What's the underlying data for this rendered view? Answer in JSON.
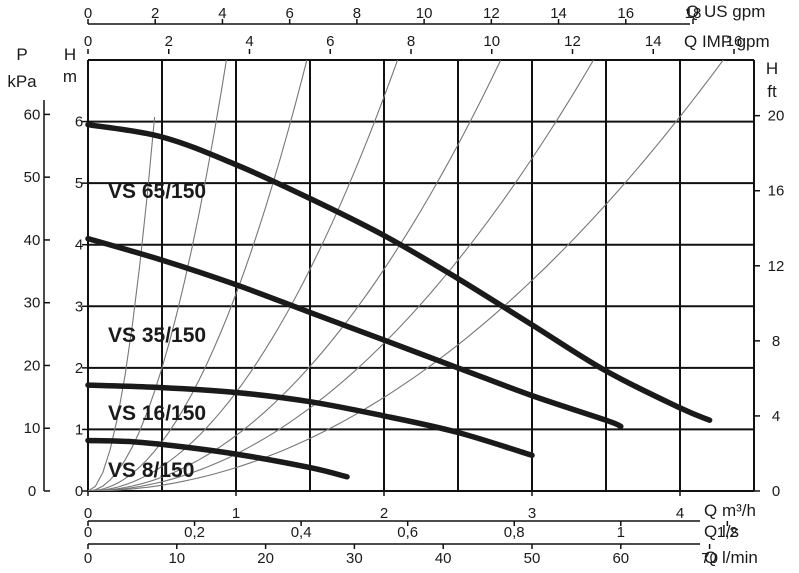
{
  "chart_data": {
    "type": "line",
    "curves": [
      {
        "name": "VS 65/150",
        "x": [
          0,
          0.5,
          1,
          1.5,
          2,
          2.5,
          3,
          3.5,
          4,
          4.2
        ],
        "y": [
          5.95,
          5.75,
          5.3,
          4.75,
          4.15,
          3.45,
          2.7,
          1.95,
          1.35,
          1.15
        ]
      },
      {
        "name": "VS 35/150",
        "x": [
          0,
          0.5,
          1,
          1.5,
          2,
          2.5,
          3,
          3.5,
          3.6
        ],
        "y": [
          4.1,
          3.75,
          3.35,
          2.9,
          2.45,
          2.0,
          1.55,
          1.15,
          1.05
        ]
      },
      {
        "name": "VS 16/150",
        "x": [
          0,
          0.5,
          1,
          1.5,
          2,
          2.5,
          3
        ],
        "y": [
          1.72,
          1.68,
          1.6,
          1.45,
          1.22,
          0.95,
          0.58
        ]
      },
      {
        "name": "VS 8/150",
        "x": [
          0,
          0.3,
          0.6,
          1,
          1.5,
          1.75
        ],
        "y": [
          0.82,
          0.8,
          0.73,
          0.6,
          0.38,
          0.23
        ]
      }
    ],
    "system_curves_k": [
      30,
      8,
      3.2,
      1.6,
      0.9,
      0.6,
      0.38
    ],
    "axes": {
      "q_m3h": {
        "label": "Q m³/h",
        "range": [
          0,
          4.5
        ],
        "ticks": [
          "0",
          "1",
          "2",
          "3",
          "4"
        ]
      },
      "q_ls": {
        "label": "Q l/s",
        "ticks": [
          "0",
          "0,2",
          "0,4",
          "0,6",
          "0,8",
          "1",
          "1,2"
        ]
      },
      "q_lmin": {
        "label": "Q l/min",
        "ticks": [
          "0",
          "10",
          "20",
          "30",
          "40",
          "50",
          "60",
          "70"
        ]
      },
      "q_usgpm": {
        "label": "Q US gpm",
        "ticks": [
          "0",
          "2",
          "4",
          "6",
          "8",
          "10",
          "12",
          "14",
          "16",
          "18"
        ]
      },
      "q_impgpm": {
        "label": "Q IMP gpm",
        "ticks": [
          "0",
          "2",
          "4",
          "6",
          "8",
          "10",
          "12",
          "14",
          "16"
        ]
      },
      "head_m": {
        "label_top": "H",
        "label_bottom": "m",
        "range": [
          0,
          7
        ],
        "ticks": [
          "0",
          "1",
          "2",
          "3",
          "4",
          "5",
          "6"
        ]
      },
      "pressure_kpa": {
        "label_top": "P",
        "label_bottom": "kPa",
        "ticks": [
          "0",
          "10",
          "20",
          "30",
          "40",
          "50",
          "60"
        ]
      },
      "head_ft": {
        "label_top": "H",
        "label_bottom": "ft",
        "ticks": [
          "0",
          "4",
          "8",
          "12",
          "16",
          "20"
        ]
      }
    },
    "grid": true
  }
}
